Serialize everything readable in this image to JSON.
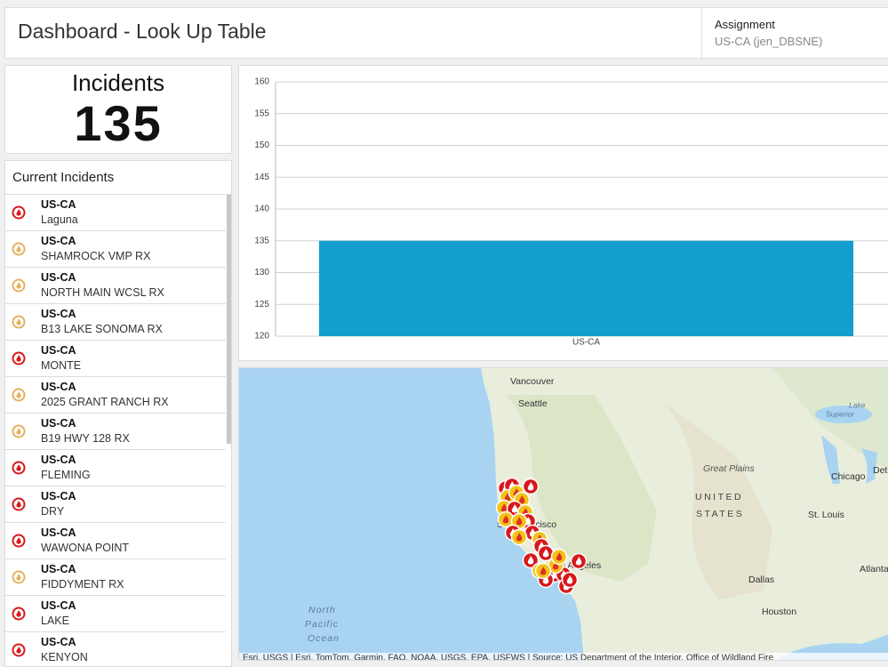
{
  "header": {
    "title": "Dashboard - Look Up Table",
    "assignment_label": "Assignment",
    "assignment_value": "US-CA (jen_DBSNE)"
  },
  "indicator": {
    "title": "Incidents",
    "value": 135
  },
  "list": {
    "title": "Current Incidents",
    "items": [
      {
        "state": "US-CA",
        "name": "Laguna",
        "color": "#d7191c"
      },
      {
        "state": "US-CA",
        "name": "SHAMROCK VMP RX",
        "color": "#e3b25e"
      },
      {
        "state": "US-CA",
        "name": "NORTH MAIN WCSL RX",
        "color": "#e3b25e"
      },
      {
        "state": "US-CA",
        "name": "B13 LAKE SONOMA RX",
        "color": "#e3b25e"
      },
      {
        "state": "US-CA",
        "name": "MONTE",
        "color": "#d7191c"
      },
      {
        "state": "US-CA",
        "name": "2025 GRANT RANCH RX",
        "color": "#e3b25e"
      },
      {
        "state": "US-CA",
        "name": "B19 HWY 128 RX",
        "color": "#e3b25e"
      },
      {
        "state": "US-CA",
        "name": "FLEMING",
        "color": "#d7191c"
      },
      {
        "state": "US-CA",
        "name": "DRY",
        "color": "#d7191c"
      },
      {
        "state": "US-CA",
        "name": "WAWONA POINT",
        "color": "#d7191c"
      },
      {
        "state": "US-CA",
        "name": "FIDDYMENT RX",
        "color": "#e3b25e"
      },
      {
        "state": "US-CA",
        "name": "LAKE",
        "color": "#d7191c"
      },
      {
        "state": "US-CA",
        "name": "KENYON",
        "color": "#d7191c"
      }
    ]
  },
  "chart_data": {
    "type": "bar",
    "categories": [
      "US-CA"
    ],
    "values": [
      135
    ],
    "color": "#149dcf",
    "ylim": [
      120,
      160
    ],
    "yticks": [
      120,
      125,
      130,
      135,
      140,
      145,
      150,
      155,
      160
    ],
    "grid": true
  },
  "map": {
    "labels": [
      "Vancouver",
      "Seattle",
      "Great Plains",
      "UNITED",
      "STATES",
      "Chicago",
      "St. Louis",
      "Dallas",
      "Houston",
      "Atlanta",
      "North",
      "Pacific",
      "Ocean",
      "Lake",
      "Superior",
      "San Francisco",
      "Los Angeles",
      "Detroit"
    ],
    "attribution": "Esri, USGS | Esri, TomTom, Garmin, FAO, NOAA, USGS, EPA, USFWS | Source: US Department of the Interior, Office of Wildland Fire"
  }
}
